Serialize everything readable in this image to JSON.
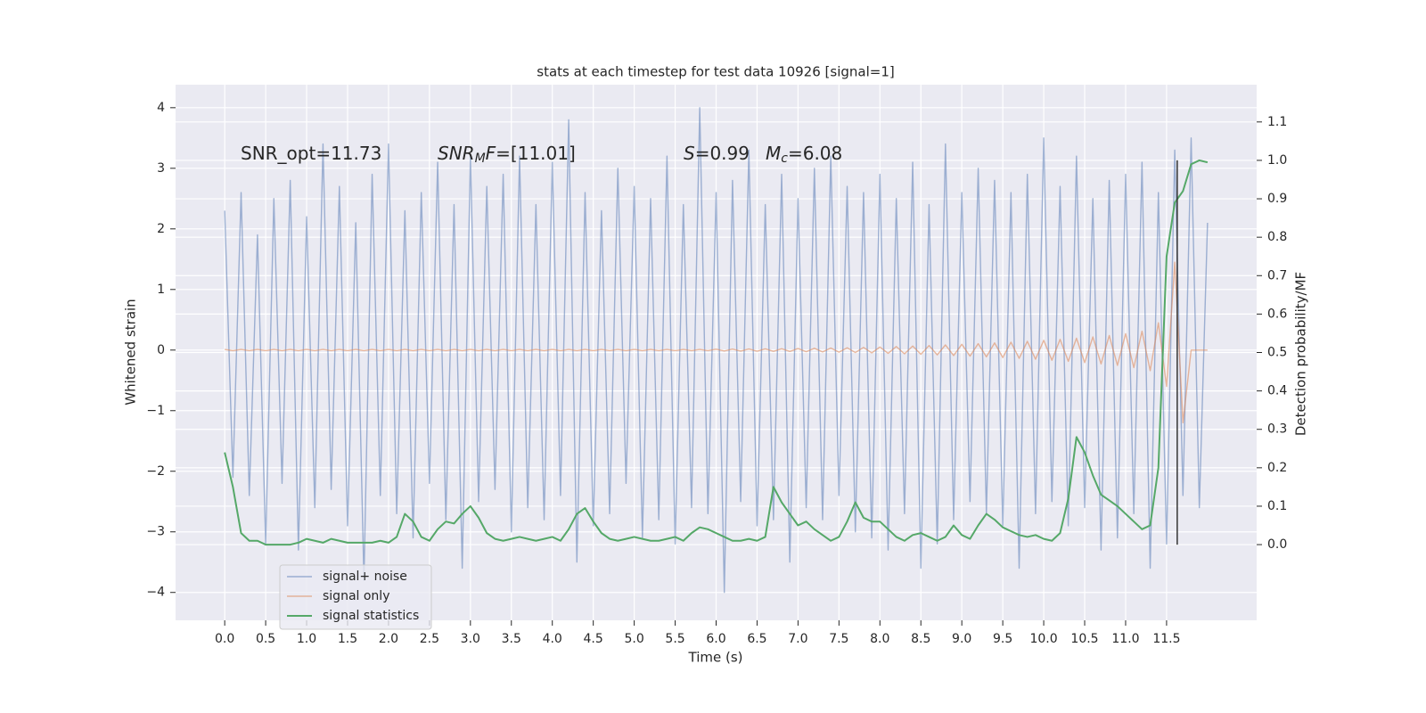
{
  "chart_data": {
    "type": "line",
    "title": "stats at each timestep for test data 10926 [signal=1]",
    "x_label": "Time (s)",
    "y_label": "Whitened strain",
    "y2_label": "Detection probability/MF",
    "annotations": [
      [
        {
          "text": "SNR_opt=11.73",
          "style": "normal"
        }
      ],
      [
        {
          "text": "SNR",
          "style": "italic"
        },
        {
          "text": "M",
          "style": "sub"
        },
        {
          "text": "F",
          "style": "italic"
        },
        {
          "text": "=[11.01]",
          "style": "normal"
        }
      ],
      [
        {
          "text": "S",
          "style": "italic"
        },
        {
          "text": "=0.99",
          "style": "normal"
        }
      ],
      [
        {
          "text": "M",
          "style": "italic"
        },
        {
          "text": "c",
          "style": "sub"
        },
        {
          "text": "=6.08",
          "style": "normal"
        }
      ]
    ],
    "x": [
      0,
      0.1,
      0.2,
      0.3,
      0.4,
      0.5,
      0.6,
      0.7,
      0.8,
      0.9,
      1,
      1.1,
      1.2,
      1.3,
      1.4,
      1.5,
      1.6,
      1.7,
      1.8,
      1.9,
      2,
      2.1,
      2.2,
      2.3,
      2.4,
      2.5,
      2.6,
      2.7,
      2.8,
      2.9,
      3,
      3.1,
      3.2,
      3.3,
      3.4,
      3.5,
      3.6,
      3.7,
      3.8,
      3.9,
      4,
      4.1,
      4.2,
      4.3,
      4.4,
      4.5,
      4.6,
      4.7,
      4.8,
      4.9,
      5,
      5.1,
      5.2,
      5.3,
      5.4,
      5.5,
      5.6,
      5.7,
      5.8,
      5.9,
      6,
      6.1,
      6.2,
      6.3,
      6.4,
      6.5,
      6.6,
      6.7,
      6.8,
      6.9,
      7,
      7.1,
      7.2,
      7.3,
      7.4,
      7.5,
      7.6,
      7.7,
      7.8,
      7.9,
      8,
      8.1,
      8.2,
      8.3,
      8.4,
      8.5,
      8.6,
      8.7,
      8.8,
      8.9,
      9,
      9.1,
      9.2,
      9.3,
      9.4,
      9.5,
      9.6,
      9.7,
      9.8,
      9.9,
      10,
      10.1,
      10.2,
      10.3,
      10.4,
      10.5,
      10.6,
      10.7,
      10.8,
      10.9,
      11,
      11.1,
      11.2,
      11.3,
      11.4,
      11.5,
      11.6,
      11.7,
      11.8,
      11.9,
      12
    ],
    "series": [
      {
        "name": "signal+ noise",
        "color": "#4c72b0",
        "axis": "y",
        "values": [
          2.3,
          -2.1,
          2.6,
          -2.4,
          1.9,
          -3.2,
          2.5,
          -2.2,
          2.8,
          -3.3,
          2.2,
          -2.6,
          3.4,
          -2.3,
          2.7,
          -2.9,
          2.1,
          -3.8,
          2.9,
          -2.4,
          3.4,
          -2.7,
          2.3,
          -3.1,
          2.6,
          -2.2,
          3.1,
          -2.8,
          2.4,
          -3.6,
          3.2,
          -2.5,
          2.7,
          -2.3,
          2.9,
          -3.0,
          3.2,
          -2.6,
          2.4,
          -2.8,
          3.1,
          -2.4,
          3.8,
          -3.5,
          2.6,
          -2.9,
          2.3,
          -2.7,
          3.0,
          -2.2,
          2.7,
          -3.1,
          2.5,
          -2.8,
          3.2,
          -3.2,
          2.4,
          -2.6,
          4.0,
          -2.7,
          2.6,
          -4.0,
          2.8,
          -2.5,
          3.3,
          -2.9,
          2.4,
          -2.8,
          2.9,
          -3.5,
          2.5,
          -2.6,
          3.0,
          -2.8,
          3.2,
          -2.4,
          2.7,
          -3.0,
          2.6,
          -3.1,
          2.9,
          -3.3,
          2.5,
          -2.7,
          3.1,
          -3.6,
          2.4,
          -3.2,
          3.4,
          -2.8,
          2.6,
          -2.5,
          3.0,
          -2.7,
          2.8,
          -2.9,
          2.6,
          -3.6,
          2.9,
          -2.7,
          3.5,
          -2.5,
          2.7,
          -2.9,
          3.2,
          -2.6,
          2.5,
          -3.3,
          2.8,
          -3.1,
          2.9,
          -2.7,
          3.1,
          -3.6,
          2.6,
          -3.2,
          3.3,
          -2.4,
          3.5,
          -2.6,
          2.1
        ]
      },
      {
        "name": "signal only",
        "color": "#dd8452",
        "axis": "y",
        "values": [
          0.01,
          -0.01,
          0.01,
          -0.01,
          0.01,
          -0.01,
          0.01,
          -0.01,
          0.01,
          -0.01,
          0.01,
          -0.01,
          0.01,
          -0.01,
          0.01,
          -0.01,
          0.01,
          -0.01,
          0.01,
          -0.01,
          0.01,
          -0.01,
          0.01,
          -0.01,
          0.01,
          -0.01,
          0.01,
          -0.01,
          0.01,
          -0.01,
          0.01,
          -0.01,
          0.01,
          -0.01,
          0.01,
          -0.01,
          0.01,
          -0.01,
          0.01,
          -0.01,
          0.01,
          -0.01,
          0.01,
          -0.01,
          0.01,
          -0.01,
          0.01,
          -0.01,
          0.01,
          -0.01,
          0.01,
          -0.01,
          0.01,
          -0.01,
          0.01,
          -0.01,
          0.01,
          -0.01,
          0.01,
          -0.01,
          0.015,
          -0.015,
          0.016,
          -0.017,
          0.018,
          -0.019,
          0.02,
          -0.021,
          0.022,
          -0.023,
          0.025,
          -0.027,
          0.029,
          -0.031,
          0.033,
          -0.035,
          0.038,
          -0.041,
          0.044,
          -0.047,
          0.05,
          -0.054,
          0.058,
          -0.062,
          0.066,
          -0.07,
          0.075,
          -0.08,
          0.085,
          -0.09,
          0.095,
          -0.1,
          0.106,
          -0.112,
          0.118,
          -0.124,
          0.13,
          -0.137,
          0.144,
          -0.151,
          0.16,
          -0.168,
          0.177,
          -0.186,
          0.196,
          -0.206,
          0.217,
          -0.228,
          0.24,
          -0.252,
          0.27,
          -0.29,
          0.31,
          -0.34,
          0.45,
          -0.6,
          1.45,
          -1.2,
          0,
          0,
          0
        ]
      },
      {
        "name": "signal statistics",
        "color": "#55a868",
        "axis": "y2",
        "values": [
          0.24,
          0.15,
          0.03,
          0.01,
          0.01,
          0,
          0,
          0,
          0,
          0.005,
          0.015,
          0.01,
          0.005,
          0.015,
          0.01,
          0.005,
          0.005,
          0.005,
          0.005,
          0.01,
          0.005,
          0.02,
          0.08,
          0.06,
          0.02,
          0.01,
          0.04,
          0.06,
          0.055,
          0.08,
          0.1,
          0.07,
          0.03,
          0.015,
          0.01,
          0.015,
          0.02,
          0.015,
          0.01,
          0.015,
          0.02,
          0.01,
          0.04,
          0.08,
          0.095,
          0.06,
          0.03,
          0.015,
          0.01,
          0.015,
          0.02,
          0.015,
          0.01,
          0.01,
          0.015,
          0.02,
          0.01,
          0.03,
          0.045,
          0.04,
          0.03,
          0.02,
          0.01,
          0.01,
          0.015,
          0.01,
          0.02,
          0.15,
          0.11,
          0.08,
          0.05,
          0.06,
          0.04,
          0.025,
          0.01,
          0.02,
          0.06,
          0.11,
          0.07,
          0.06,
          0.06,
          0.04,
          0.02,
          0.01,
          0.025,
          0.03,
          0.02,
          0.01,
          0.02,
          0.05,
          0.025,
          0.015,
          0.05,
          0.08,
          0.065,
          0.045,
          0.035,
          0.025,
          0.02,
          0.025,
          0.015,
          0.01,
          0.03,
          0.12,
          0.28,
          0.24,
          0.18,
          0.13,
          0.115,
          0.1,
          0.08,
          0.06,
          0.04,
          0.05,
          0.2,
          0.75,
          0.89,
          0.92,
          0.99,
          1.0,
          0.995
        ]
      }
    ],
    "vline": {
      "x": 11.63,
      "y2_from": 0,
      "y2_to": 1.0,
      "color": "#333333"
    },
    "xlim": [
      -0.6,
      12.6
    ],
    "ylim": [
      -4.46,
      4.38
    ],
    "y2lim": [
      -0.197,
      1.197
    ],
    "xticks": [
      {
        "value": 0,
        "label": "0.0"
      },
      0.5,
      {
        "value": 1,
        "label": "1.0"
      },
      1.5,
      {
        "value": 2,
        "label": "2.0"
      },
      2.5,
      {
        "value": 3,
        "label": "3.0"
      },
      3.5,
      {
        "value": 4,
        "label": "4.0"
      },
      4.5,
      {
        "value": 5,
        "label": "5.0"
      },
      5.5,
      {
        "value": 6,
        "label": "6.0"
      },
      6.5,
      {
        "value": 7,
        "label": "7.0"
      },
      7.5,
      {
        "value": 8,
        "label": "8.0"
      },
      8.5,
      {
        "value": 9,
        "label": "9.0"
      },
      9.5,
      {
        "value": 10,
        "label": "10.0"
      },
      10.5,
      {
        "value": 11,
        "label": "11.0"
      },
      11.5
    ],
    "yticks": [
      {
        "value": -4,
        "label": "−4"
      },
      {
        "value": -3,
        "label": "−3"
      },
      {
        "value": -2,
        "label": "−2"
      },
      {
        "value": -1,
        "label": "−1"
      },
      0,
      1,
      2,
      3,
      4
    ],
    "y2ticks": [
      {
        "value": 0,
        "label": "0.0"
      },
      0.1,
      0.2,
      0.3,
      0.4,
      0.5,
      0.6,
      0.7,
      0.8,
      0.9,
      {
        "value": 1,
        "label": "1.0"
      },
      1.1
    ],
    "grid": true,
    "legend": "lower left"
  }
}
